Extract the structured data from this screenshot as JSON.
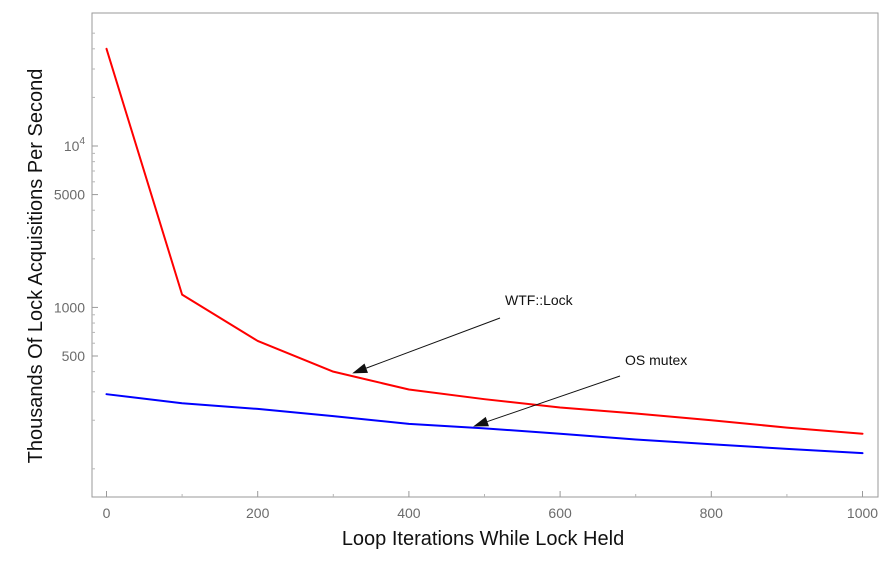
{
  "chart_data": {
    "type": "line",
    "title": "",
    "xlabel": "Loop Iterations While Lock Held",
    "ylabel": "Thousands Of Lock Acquisitions Per Second",
    "yscale": "log",
    "xlim": [
      -20,
      1020
    ],
    "ylim": [
      60,
      60000
    ],
    "grid": false,
    "x_ticks": [
      {
        "value": 0,
        "label": "0"
      },
      {
        "value": 200,
        "label": "200"
      },
      {
        "value": 400,
        "label": "400"
      },
      {
        "value": 600,
        "label": "600"
      },
      {
        "value": 800,
        "label": "800"
      },
      {
        "value": 1000,
        "label": "1000"
      }
    ],
    "y_ticks": [
      {
        "value": 500,
        "label": "500"
      },
      {
        "value": 1000,
        "label": "1000"
      },
      {
        "value": 5000,
        "label": "5000"
      },
      {
        "value": 10000,
        "label": "10",
        "exponent": "4"
      }
    ],
    "x": [
      0,
      100,
      200,
      300,
      400,
      500,
      600,
      700,
      800,
      900,
      1000
    ],
    "series": [
      {
        "color": "#ff0000",
        "values": [
          40000,
          1200,
          620,
          400,
          310,
          270,
          240,
          220,
          200,
          180,
          165
        ]
      },
      {
        "color": "#0000ff",
        "values": [
          290,
          255,
          235,
          212,
          190,
          178,
          165,
          152,
          142,
          133,
          125
        ]
      }
    ],
    "annotations": [
      {
        "text": "WTF::Lock",
        "target_x": 325,
        "target_y": 390
      },
      {
        "text": "OS mutex",
        "target_x": 485,
        "target_y": 183
      }
    ]
  }
}
